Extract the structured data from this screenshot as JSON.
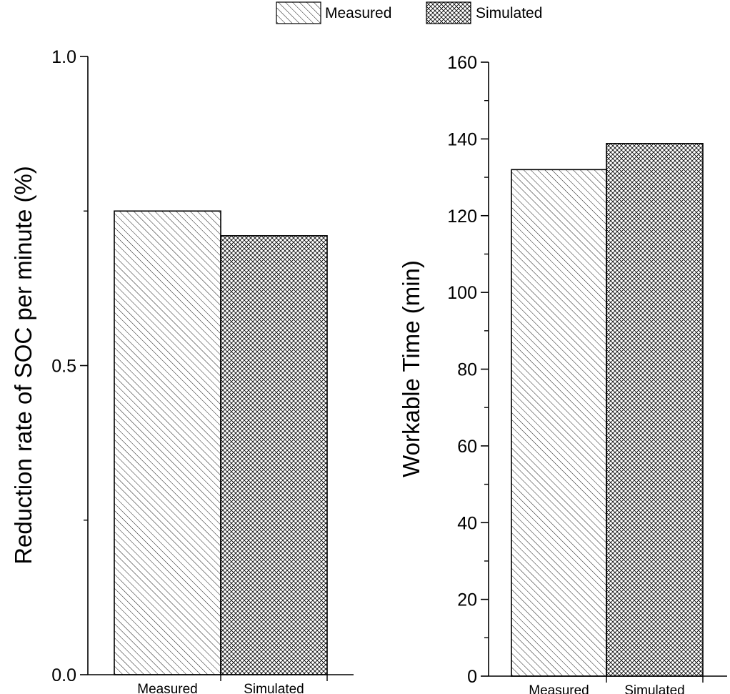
{
  "legend": {
    "placement": "top-center",
    "entries": [
      {
        "label": "Measured",
        "pattern": "diagonal-hatch"
      },
      {
        "label": "Simulated",
        "pattern": "cross-hatch"
      }
    ]
  },
  "chart_data": [
    {
      "type": "bar",
      "title": "",
      "xlabel": "",
      "ylabel": "Reduction rate of SOC per minute (%)",
      "categories": [
        "Measured",
        "Simulated"
      ],
      "values": [
        0.75,
        0.71
      ],
      "ylim": [
        0,
        1.0
      ],
      "yticks": [
        0,
        0.5,
        1.0
      ],
      "ytick_labels": [
        "0.0",
        "0.5",
        "1.0"
      ],
      "minor_yticks": [
        0.25,
        0.75
      ],
      "patterns": [
        "diagonal-hatch",
        "cross-hatch"
      ],
      "grid": false
    },
    {
      "type": "bar",
      "title": "",
      "xlabel": "",
      "ylabel": "Workable Time (min)",
      "categories": [
        "Measured",
        "Simulated"
      ],
      "values": [
        132,
        138.8
      ],
      "ylim": [
        0,
        160
      ],
      "yticks": [
        0,
        20,
        40,
        60,
        80,
        100,
        120,
        140,
        160
      ],
      "ytick_labels": [
        "0",
        "20",
        "40",
        "60",
        "80",
        "100",
        "120",
        "140",
        "160"
      ],
      "minor_yticks": [
        10,
        30,
        50,
        70,
        90,
        110,
        130,
        150
      ],
      "patterns": [
        "diagonal-hatch",
        "cross-hatch"
      ],
      "grid": false
    }
  ],
  "colors": {
    "axis": "#000000",
    "bar_fill": "#ffffff",
    "hatch": "#000000"
  }
}
